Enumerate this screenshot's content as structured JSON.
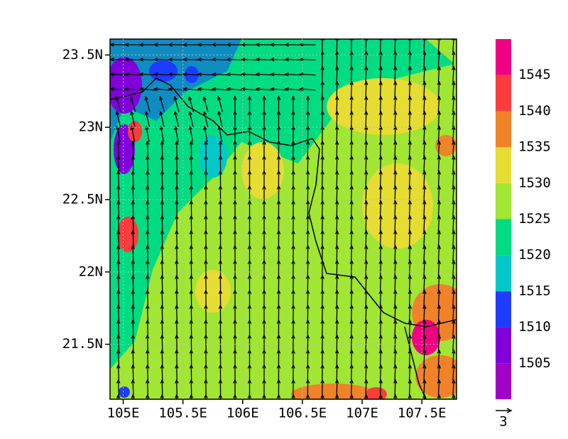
{
  "chart_data": {
    "type": "map",
    "xlim": [
      104.89,
      107.79
    ],
    "ylim": [
      21.12,
      23.61
    ],
    "xticks": [
      {
        "value": 105,
        "label": "105E"
      },
      {
        "value": 105.5,
        "label": "105.5E"
      },
      {
        "value": 106,
        "label": "106E"
      },
      {
        "value": 106.5,
        "label": "106.5E"
      },
      {
        "value": 107,
        "label": "107E"
      },
      {
        "value": 107.5,
        "label": "107.5E"
      }
    ],
    "yticks": [
      {
        "value": 21.5,
        "label": "21.5N"
      },
      {
        "value": 22,
        "label": "22N"
      },
      {
        "value": 22.5,
        "label": "22.5N"
      },
      {
        "value": 23,
        "label": "23N"
      },
      {
        "value": 23.5,
        "label": "23.5N"
      }
    ],
    "colorbar": {
      "clim": [
        1500,
        1550
      ],
      "ticks": [
        1505,
        1510,
        1515,
        1520,
        1525,
        1530,
        1535,
        1540,
        1545
      ],
      "colors": [
        "#a000c8",
        "#8200dc",
        "#1e3cff",
        "#00c8c8",
        "#00dc82",
        "#a0e632",
        "#e6dc32",
        "#f08228",
        "#fa3c3c",
        "#f00082"
      ]
    },
    "vector_reference": 3
  }
}
